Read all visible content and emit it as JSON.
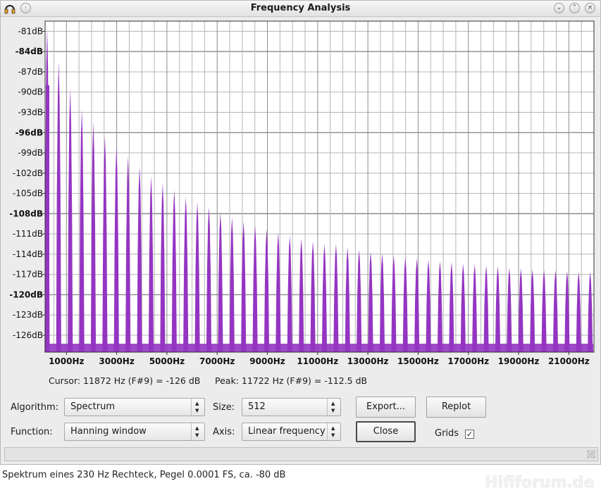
{
  "window": {
    "title": "Frequency Analysis"
  },
  "colors": {
    "spectrum": "#9435c2",
    "grid": "#b5b5b5",
    "plot_bg": "#ffffff"
  },
  "chart_data": {
    "type": "area",
    "title": "",
    "xlabel": "",
    "ylabel": "",
    "ylim": [
      -128.5,
      -79.5
    ],
    "xlim": [
      150,
      22000
    ],
    "y_ticks": [
      {
        "label": "-81dB",
        "v": -81,
        "bold": false
      },
      {
        "label": "-84dB",
        "v": -84,
        "bold": true
      },
      {
        "label": "-87dB",
        "v": -87,
        "bold": false
      },
      {
        "label": "-90dB",
        "v": -90,
        "bold": false
      },
      {
        "label": "-93dB",
        "v": -93,
        "bold": false
      },
      {
        "label": "-96dB",
        "v": -96,
        "bold": true
      },
      {
        "label": "-99dB",
        "v": -99,
        "bold": false
      },
      {
        "label": "-102dB",
        "v": -102,
        "bold": false
      },
      {
        "label": "-105dB",
        "v": -105,
        "bold": false
      },
      {
        "label": "-108dB",
        "v": -108,
        "bold": true
      },
      {
        "label": "-111dB",
        "v": -111,
        "bold": false
      },
      {
        "label": "-114dB",
        "v": -114,
        "bold": false
      },
      {
        "label": "-117dB",
        "v": -117,
        "bold": false
      },
      {
        "label": "-120dB",
        "v": -120,
        "bold": true
      },
      {
        "label": "-123dB",
        "v": -123,
        "bold": false
      },
      {
        "label": "-126dB",
        "v": -126,
        "bold": false
      }
    ],
    "x_ticks": [
      {
        "label": "1000Hz",
        "v": 1000
      },
      {
        "label": "3000Hz",
        "v": 3000
      },
      {
        "label": "5000Hz",
        "v": 5000
      },
      {
        "label": "7000Hz",
        "v": 7000
      },
      {
        "label": "9000Hz",
        "v": 9000
      },
      {
        "label": "11000Hz",
        "v": 11000
      },
      {
        "label": "13000Hz",
        "v": 13000
      },
      {
        "label": "15000Hz",
        "v": 15000
      },
      {
        "label": "17000Hz",
        "v": 17000
      },
      {
        "label": "19000Hz",
        "v": 19000
      },
      {
        "label": "21000Hz",
        "v": 21000
      }
    ],
    "peaks_hz": [
      230,
      690,
      1150,
      1610,
      2070,
      2530,
      2990,
      3450,
      3910,
      4370,
      4830,
      5290,
      5750,
      6210,
      6670,
      7130,
      7590,
      8050,
      8510,
      8970,
      9430,
      9890,
      10350,
      10810,
      11270,
      11730,
      12190,
      12650,
      13110,
      13570,
      14030,
      14490,
      14950,
      15410,
      15870,
      16330,
      16790,
      17250,
      17710,
      18170,
      18630,
      19090,
      19550,
      20010,
      20470,
      20930,
      21390,
      21850
    ],
    "peaks_db": [
      -80.5,
      -85.5,
      -89.5,
      -92.5,
      -94.5,
      -96.5,
      -98.0,
      -99.5,
      -101.0,
      -102.5,
      -103.5,
      -104.5,
      -105.5,
      -106.3,
      -107.0,
      -107.8,
      -108.5,
      -109.2,
      -109.8,
      -110.3,
      -110.8,
      -111.3,
      -111.7,
      -112.1,
      -112.5,
      -112.5,
      -113.0,
      -113.3,
      -113.6,
      -113.9,
      -114.2,
      -114.4,
      -114.6,
      -114.8,
      -115.0,
      -115.2,
      -115.4,
      -115.5,
      -115.7,
      -115.8,
      -116.0,
      -116.1,
      -116.2,
      -116.3,
      -116.4,
      -116.5,
      -116.6,
      -116.6
    ]
  },
  "status": {
    "cursor": "Cursor: 11872 Hz (F#9) = -126 dB",
    "peak": "Peak: 11722 Hz (F#9) = -112.5 dB"
  },
  "controls": {
    "algorithm_label": "Algorithm:",
    "algorithm_value": "Spectrum",
    "function_label": "Function:",
    "function_value": "Hanning window",
    "size_label": "Size:",
    "size_value": "512",
    "axis_label": "Axis:",
    "axis_value": "Linear frequency",
    "export_label": "Export...",
    "replot_label": "Replot",
    "close_label": "Close",
    "grids_label": "Grids",
    "grids_checked": true
  },
  "caption": "Spektrum eines 230 Hz Rechteck, Pegel 0.0001 FS, ca. -80 dB"
}
